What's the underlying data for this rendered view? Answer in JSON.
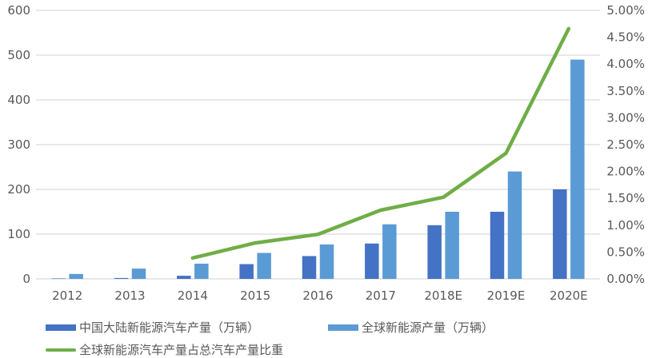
{
  "chart_data": {
    "type": "bar",
    "title": "",
    "categories": [
      "2012",
      "2013",
      "2014",
      "2015",
      "2016",
      "2017",
      "2018E",
      "2019E",
      "2020E"
    ],
    "series": [
      {
        "name": "中国大陆新能源汽车产量（万辆）",
        "type": "bar",
        "axis": "left",
        "color": "#4472C4",
        "values": [
          1,
          2,
          7,
          33,
          51,
          79,
          120,
          150,
          200
        ]
      },
      {
        "name": "全球新能源产量（万辆）",
        "type": "bar",
        "axis": "left",
        "color": "#5B9BD5",
        "values": [
          11,
          23,
          34,
          58,
          77,
          122,
          150,
          240,
          490
        ]
      },
      {
        "name": "全球新能源汽车产量占总汽车产量比重",
        "type": "line",
        "axis": "right",
        "color": "#70AD47",
        "values": [
          null,
          null,
          0.39,
          0.67,
          0.83,
          1.28,
          1.52,
          2.34,
          4.66
        ]
      }
    ],
    "xlabel": "",
    "ylabel": "",
    "ylim": [
      0,
      600
    ],
    "yticks": [
      "0",
      "100",
      "200",
      "300",
      "400",
      "500",
      "600"
    ],
    "y2lim": [
      0,
      5
    ],
    "y2ticks": [
      "0.00%",
      "0.50%",
      "1.00%",
      "1.50%",
      "2.00%",
      "2.50%",
      "3.00%",
      "3.50%",
      "4.00%",
      "4.50%",
      "5.00%"
    ],
    "grid": true,
    "legend_position": "bottom"
  },
  "legend": {
    "items": [
      {
        "label": "中国大陆新能源汽车产量（万辆）",
        "kind": "bar",
        "color": "#4472C4"
      },
      {
        "label": "全球新能源产量（万辆）",
        "kind": "bar",
        "color": "#5B9BD5"
      },
      {
        "label": "全球新能源汽车产量占总汽车产量比重",
        "kind": "line",
        "color": "#70AD47"
      }
    ]
  }
}
